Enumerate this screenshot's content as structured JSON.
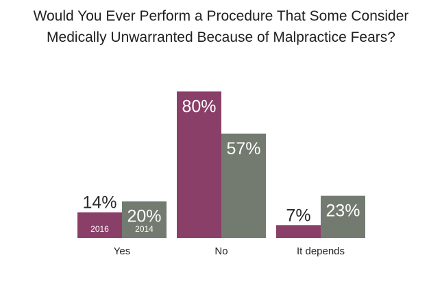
{
  "chart_data": {
    "type": "bar",
    "title": "Would You Ever Perform a Procedure That Some Consider Medically Unwarranted Because of Malpractice Fears?",
    "title_lines": [
      "Would You Ever Perform a Procedure That Some Consider",
      "Medically Unwarranted Because of Malpractice Fears?"
    ],
    "categories": [
      "Yes",
      "No",
      "It depends"
    ],
    "series": [
      {
        "name": "2016",
        "values": [
          14,
          80,
          7
        ],
        "labels": [
          "14%",
          "80%",
          "7%"
        ],
        "color": "#8a3f68"
      },
      {
        "name": "2014",
        "values": [
          20,
          57,
          23
        ],
        "labels": [
          "20%",
          "57%",
          "23%"
        ],
        "color": "#737b70"
      }
    ],
    "legend": "inside-first-bars",
    "ylim": [
      0,
      80
    ],
    "grid": false,
    "xlabel": "",
    "ylabel": ""
  }
}
